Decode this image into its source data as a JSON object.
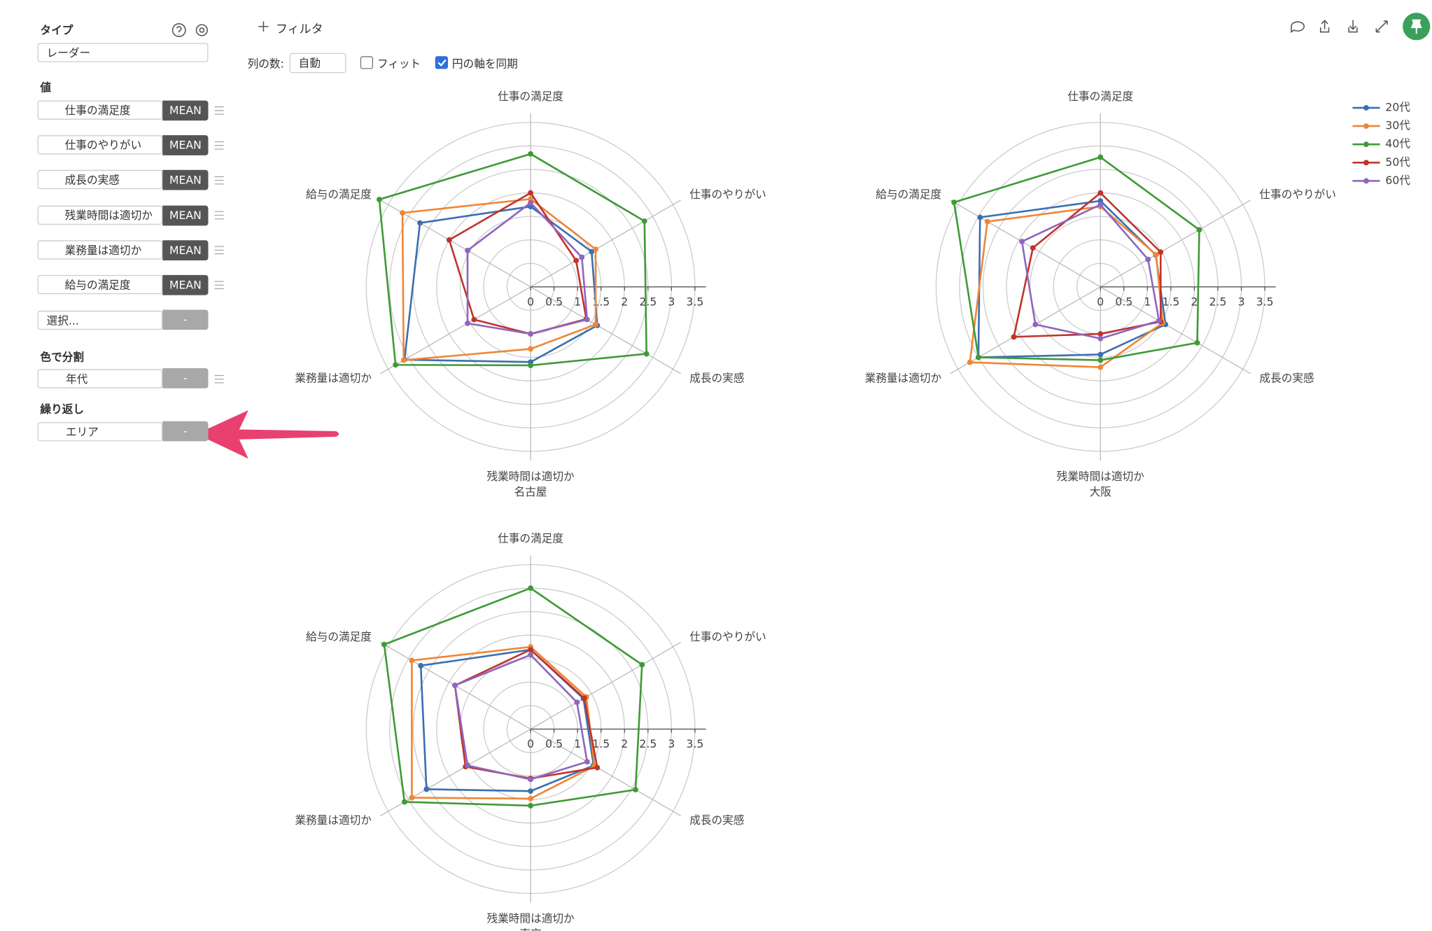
{
  "sidebar": {
    "type_label": "タイプ",
    "type_value": "レーダー",
    "values_label": "値",
    "values": [
      {
        "name": "仕事の満足度",
        "agg": "MEAN"
      },
      {
        "name": "仕事のやりがい",
        "agg": "MEAN"
      },
      {
        "name": "成長の実感",
        "agg": "MEAN"
      },
      {
        "name": "残業時間は適切か",
        "agg": "MEAN"
      },
      {
        "name": "業務量は適切か",
        "agg": "MEAN"
      },
      {
        "name": "給与の満足度",
        "agg": "MEAN"
      }
    ],
    "select_placeholder": "選択...",
    "empty": "-",
    "color_label": "色で分割",
    "color_field": "年代",
    "repeat_label": "繰り返し",
    "repeat_field": "エリア"
  },
  "toolbar": {
    "filter": "フィルタ",
    "columns_label": "列の数:",
    "columns_value": "自動",
    "fit": "フィット",
    "fit_checked": false,
    "sync": "円の軸を同期",
    "sync_checked": true
  },
  "chart_data": [
    {
      "type": "radar",
      "title": "名古屋",
      "categories": [
        "仕事の満足度",
        "仕事のやりがい",
        "成長の実感",
        "残業時間は適切か",
        "業務量は適切か",
        "給与の満足度"
      ],
      "rlim": [
        0,
        3.5
      ],
      "rticks": [
        0,
        0.5,
        1,
        1.5,
        2,
        2.5,
        3,
        3.5
      ],
      "series": [
        {
          "name": "20代",
          "color": "#3b6fb0",
          "values": [
            1.71,
            1.5,
            1.64,
            1.6,
            3.1,
            2.72
          ]
        },
        {
          "name": "30代",
          "color": "#ef8636",
          "values": [
            1.87,
            1.6,
            1.6,
            1.32,
            3.12,
            3.15
          ]
        },
        {
          "name": "40代",
          "color": "#3f9a36",
          "values": [
            2.83,
            2.8,
            2.85,
            1.67,
            3.32,
            3.72
          ]
        },
        {
          "name": "50代",
          "color": "#c0342d",
          "values": [
            2.0,
            1.12,
            1.37,
            1.0,
            1.39,
            2.0
          ]
        },
        {
          "name": "60代",
          "color": "#8f66bd",
          "values": [
            1.79,
            1.26,
            1.39,
            1.0,
            1.55,
            1.55
          ]
        }
      ]
    },
    {
      "type": "radar",
      "title": "大阪",
      "categories": [
        "仕事の満足度",
        "仕事のやりがい",
        "成長の実感",
        "残業時間は適切か",
        "業務量は適切か",
        "給与の満足度"
      ],
      "rlim": [
        0,
        3.5
      ],
      "rticks": [
        0,
        0.5,
        1,
        1.5,
        2,
        2.5,
        3,
        3.5
      ],
      "series": [
        {
          "name": "20代",
          "color": "#3b6fb0",
          "values": [
            1.83,
            1.36,
            1.6,
            1.44,
            3.0,
            2.96
          ]
        },
        {
          "name": "30代",
          "color": "#ef8636",
          "values": [
            1.71,
            1.37,
            1.53,
            1.71,
            3.21,
            2.78
          ]
        },
        {
          "name": "40代",
          "color": "#3f9a36",
          "values": [
            2.76,
            2.43,
            2.38,
            1.56,
            3.0,
            3.6
          ]
        },
        {
          "name": "50代",
          "color": "#c0342d",
          "values": [
            2.0,
            1.48,
            1.48,
            1.0,
            2.13,
            1.66
          ]
        },
        {
          "name": "60代",
          "color": "#8f66bd",
          "values": [
            1.75,
            1.17,
            1.44,
            1.1,
            1.6,
            1.93
          ]
        }
      ]
    },
    {
      "type": "radar",
      "title": "東京",
      "categories": [
        "仕事の満足度",
        "仕事のやりがい",
        "成長の実感",
        "残業時間は適切か",
        "業務量は適切か",
        "給与の満足度"
      ],
      "rlim": [
        0,
        3.5
      ],
      "rticks": [
        0,
        0.5,
        1,
        1.5,
        2,
        2.5,
        3,
        3.5
      ],
      "series": [
        {
          "name": "20代",
          "color": "#3b6fb0",
          "values": [
            1.69,
            1.3,
            1.55,
            1.32,
            2.56,
            2.7
          ]
        },
        {
          "name": "30代",
          "color": "#ef8636",
          "values": [
            1.75,
            1.37,
            1.57,
            1.48,
            2.92,
            2.92
          ]
        },
        {
          "name": "40代",
          "color": "#3f9a36",
          "values": [
            3.0,
            2.74,
            2.58,
            1.63,
            3.1,
            3.6
          ]
        },
        {
          "name": "50代",
          "color": "#c0342d",
          "values": [
            1.69,
            1.32,
            1.64,
            1.05,
            1.6,
            1.86
          ]
        },
        {
          "name": "60代",
          "color": "#8f66bd",
          "values": [
            1.58,
            1.14,
            1.39,
            1.07,
            1.55,
            1.86
          ]
        }
      ]
    }
  ]
}
